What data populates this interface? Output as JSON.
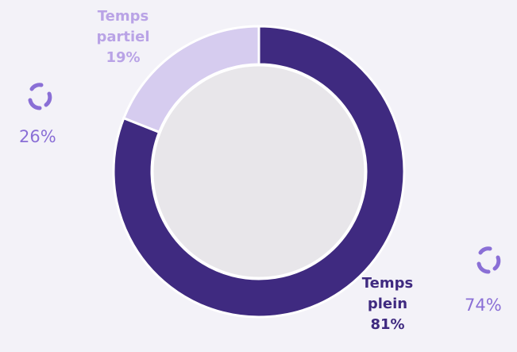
{
  "chart_data": {
    "type": "donut",
    "categories": [
      "Temps plein",
      "Temps partiel"
    ],
    "values": [
      81,
      19
    ],
    "value_labels": [
      "81%",
      "19%"
    ],
    "colors": [
      "#3f2a80",
      "#d6ccef"
    ],
    "label_colors": [
      "#3f2a80",
      "#b9a3e6"
    ],
    "annotations": [
      "26%",
      "74%"
    ]
  }
}
